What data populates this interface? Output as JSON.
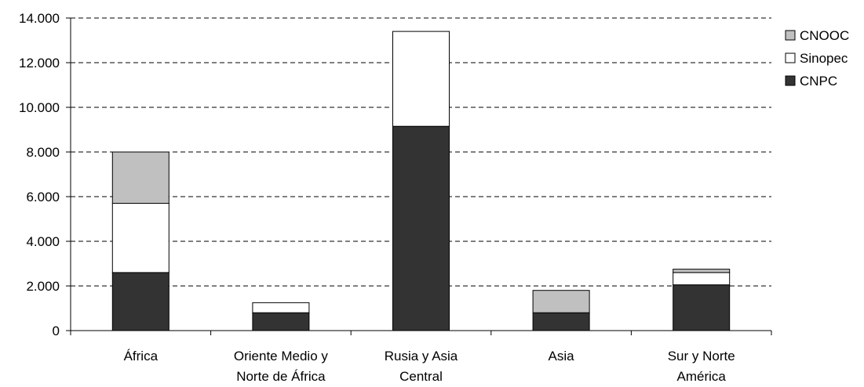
{
  "chart_data": {
    "type": "bar",
    "stacked": true,
    "categories": [
      [
        "África"
      ],
      [
        "Oriente Medio y",
        "Norte de África"
      ],
      [
        "Rusia y Asia",
        "Central"
      ],
      [
        "Asia"
      ],
      [
        "Sur y Norte",
        "América"
      ]
    ],
    "series": [
      {
        "name": "CNPC",
        "color": "#333333",
        "values": [
          2600,
          800,
          9150,
          800,
          2050
        ]
      },
      {
        "name": "Sinopec",
        "color": "#ffffff",
        "values": [
          3100,
          450,
          4250,
          0,
          550
        ]
      },
      {
        "name": "CNOOC",
        "color": "#c0c0c0",
        "values": [
          2300,
          0,
          0,
          1000,
          150
        ]
      }
    ],
    "legend_order": [
      "CNOOC",
      "Sinopec",
      "CNPC"
    ],
    "legend_position": "right",
    "y_ticks": [
      "0",
      "2.000",
      "4.000",
      "6.000",
      "8.000",
      "10.000",
      "12.000",
      "14.000"
    ],
    "ylim": [
      0,
      14000
    ],
    "grid": "horizontal dashed",
    "title": "",
    "xlabel": "",
    "ylabel": ""
  }
}
